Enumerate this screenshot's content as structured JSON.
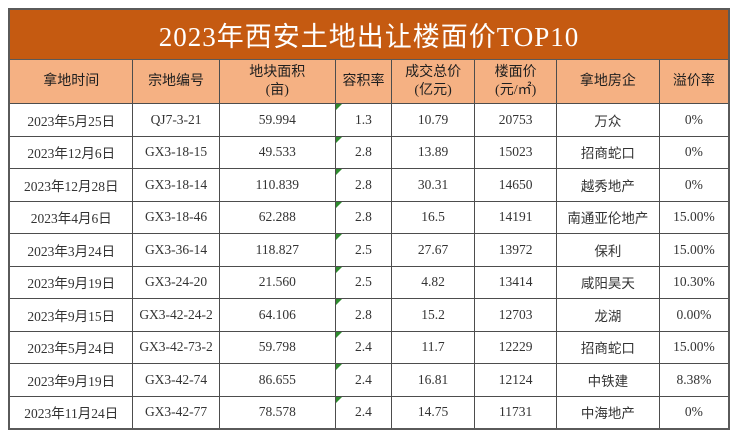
{
  "chart_data": {
    "type": "table",
    "title": "2023年西安土地出让楼面价TOP10",
    "columns": [
      {
        "label": "拿地时间",
        "sublabel": ""
      },
      {
        "label": "宗地编号",
        "sublabel": ""
      },
      {
        "label": "地块面积",
        "sublabel": "(亩)"
      },
      {
        "label": "容积率",
        "sublabel": ""
      },
      {
        "label": "成交总价",
        "sublabel": "(亿元)"
      },
      {
        "label": "楼面价",
        "sublabel": "(元/㎡)"
      },
      {
        "label": "拿地房企",
        "sublabel": ""
      },
      {
        "label": "溢价率",
        "sublabel": ""
      }
    ],
    "rows": [
      [
        "2023年5月25日",
        "QJ7-3-21",
        "59.994",
        "1.3",
        "10.79",
        "20753",
        "万众",
        "0%"
      ],
      [
        "2023年12月6日",
        "GX3-18-15",
        "49.533",
        "2.8",
        "13.89",
        "15023",
        "招商蛇口",
        "0%"
      ],
      [
        "2023年12月28日",
        "GX3-18-14",
        "110.839",
        "2.8",
        "30.31",
        "14650",
        "越秀地产",
        "0%"
      ],
      [
        "2023年4月6日",
        "GX3-18-46",
        "62.288",
        "2.8",
        "16.5",
        "14191",
        "南通亚伦地产",
        "15.00%"
      ],
      [
        "2023年3月24日",
        "GX3-36-14",
        "118.827",
        "2.5",
        "27.67",
        "13972",
        "保利",
        "15.00%"
      ],
      [
        "2023年9月19日",
        "GX3-24-20",
        "21.560",
        "2.5",
        "4.82",
        "13414",
        "咸阳昊天",
        "10.30%"
      ],
      [
        "2023年9月15日",
        "GX3-42-24-2",
        "64.106",
        "2.8",
        "15.2",
        "12703",
        "龙湖",
        "0.00%"
      ],
      [
        "2023年5月24日",
        "GX3-42-73-2",
        "59.798",
        "2.4",
        "11.7",
        "12229",
        "招商蛇口",
        "15.00%"
      ],
      [
        "2023年9月19日",
        "GX3-42-74",
        "86.655",
        "2.4",
        "16.81",
        "12124",
        "中铁建",
        "8.38%"
      ],
      [
        "2023年11月24日",
        "GX3-42-77",
        "78.578",
        "2.4",
        "14.75",
        "11731",
        "中海地产",
        "0%"
      ]
    ]
  },
  "icons": {
    "cell_flag": "green-corner-triangle"
  },
  "colors": {
    "title_bg": "#C55A11",
    "title_text": "#FFFFFF",
    "header_bg": "#F5B183",
    "body_bg": "#FFFFFF",
    "grid_border": "#4D4D4D",
    "cell_text": "#333333",
    "flag_green": "#2E8B2E"
  }
}
